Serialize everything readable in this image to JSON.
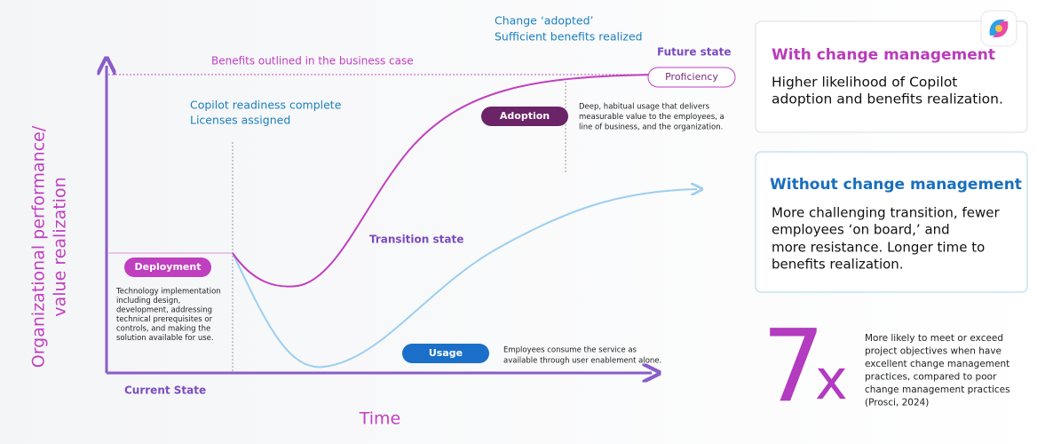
{
  "diagram": {
    "y_axis_label": [
      "Organizational performance/",
      "value realization"
    ],
    "x_axis_label": "Time",
    "current_state": "Current State",
    "future_state": "Future state",
    "benefits_line": "Benefits outlined in the business case",
    "change_adopted": [
      "Change ‘adopted’",
      "Sufficient benefits realized"
    ],
    "readiness": [
      "Copilot readiness complete",
      "Licenses assigned"
    ],
    "transition": "Transition state",
    "stages": {
      "deployment": {
        "label": "Deployment",
        "description": [
          "Technology implementation",
          "including design,",
          "development, addressing",
          "technical prerequisites or",
          "controls, and making the",
          "solution available for use."
        ]
      },
      "usage": {
        "label": "Usage",
        "description": [
          "Employees consume the service as",
          "available through user enablement alone."
        ]
      },
      "adoption": {
        "label": "Adoption",
        "description": [
          "Deep, habitual usage that delivers",
          "measurable value to the employees, a",
          "line of business, and the organization."
        ]
      },
      "proficiency": {
        "label": "Proficiency"
      }
    }
  },
  "cards": {
    "with": {
      "title": "With change management",
      "body": [
        "Higher likelihood of Copilot",
        "adoption and benefits realization."
      ]
    },
    "without": {
      "title": "Without change management",
      "body": [
        "More challenging transition, fewer",
        "employees ‘on board,’ and",
        "more resistance. Longer time to",
        "benefits realization."
      ]
    }
  },
  "stat": {
    "number": "7",
    "suffix": "x",
    "description": [
      "More likely to meet or exceed",
      "project objectives when have",
      "excellent change management",
      "practices, compared to poor",
      "change management practices",
      "(Prosci, 2024)"
    ]
  }
}
